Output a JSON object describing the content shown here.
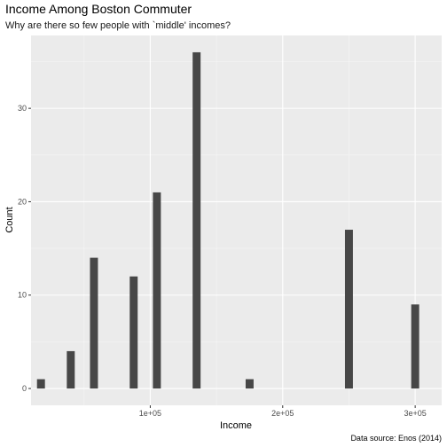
{
  "chart_data": {
    "type": "bar",
    "title": "Income Among Boston Commuter",
    "subtitle": "Why are there so few people with `middle' incomes?",
    "xlabel": "Income",
    "ylabel": "Count",
    "caption": "Data source: Enos (2014)",
    "x_ticks": [
      {
        "value": 100000,
        "label": "1e+05"
      },
      {
        "value": 200000,
        "label": "2e+05"
      },
      {
        "value": 300000,
        "label": "3e+05"
      }
    ],
    "y_ticks": [
      {
        "value": 0,
        "label": "0"
      },
      {
        "value": 10,
        "label": "10"
      },
      {
        "value": 20,
        "label": "20"
      },
      {
        "value": 30,
        "label": "30"
      }
    ],
    "xlim": [
      10000,
      320000
    ],
    "ylim": [
      -1.8,
      37.8
    ],
    "bin_width": 6000,
    "grid": true,
    "bar_color": "#474747",
    "panel_color": "#ebebeb",
    "bins": [
      {
        "x": 17500,
        "count": 1
      },
      {
        "x": 40000,
        "count": 4
      },
      {
        "x": 57500,
        "count": 14
      },
      {
        "x": 87500,
        "count": 12
      },
      {
        "x": 105000,
        "count": 21
      },
      {
        "x": 135000,
        "count": 36
      },
      {
        "x": 175000,
        "count": 1
      },
      {
        "x": 250000,
        "count": 17
      },
      {
        "x": 300000,
        "count": 9
      }
    ]
  }
}
